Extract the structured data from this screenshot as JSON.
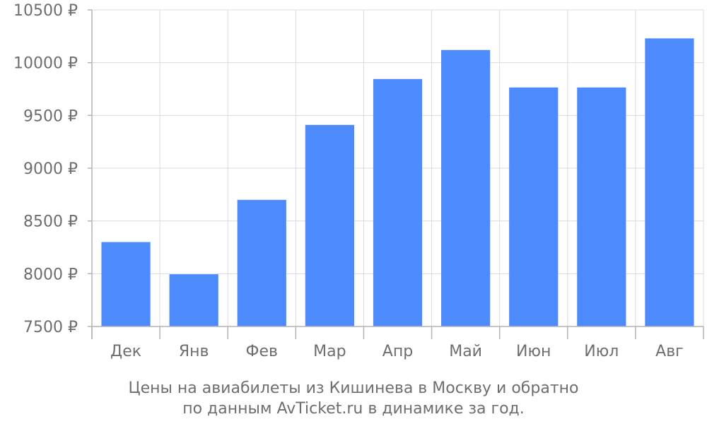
{
  "chart_data": {
    "type": "bar",
    "categories": [
      "Дек",
      "Янв",
      "Фев",
      "Мар",
      "Апр",
      "Май",
      "Июн",
      "Июл",
      "Авг"
    ],
    "values": [
      8300,
      7995,
      8700,
      9410,
      9845,
      10120,
      9765,
      9765,
      10230
    ],
    "ylim": [
      7500,
      10500
    ],
    "yticks": [
      7500,
      8000,
      8500,
      9000,
      9500,
      10000,
      10500
    ],
    "ytick_suffix": " ₽",
    "grid": true,
    "bar_color": "#4d8afc",
    "caption": [
      "Цены на авиабилеты из Кишинева в Москву и обратно",
      "по данным AvTicket.ru в динамике за год."
    ]
  }
}
